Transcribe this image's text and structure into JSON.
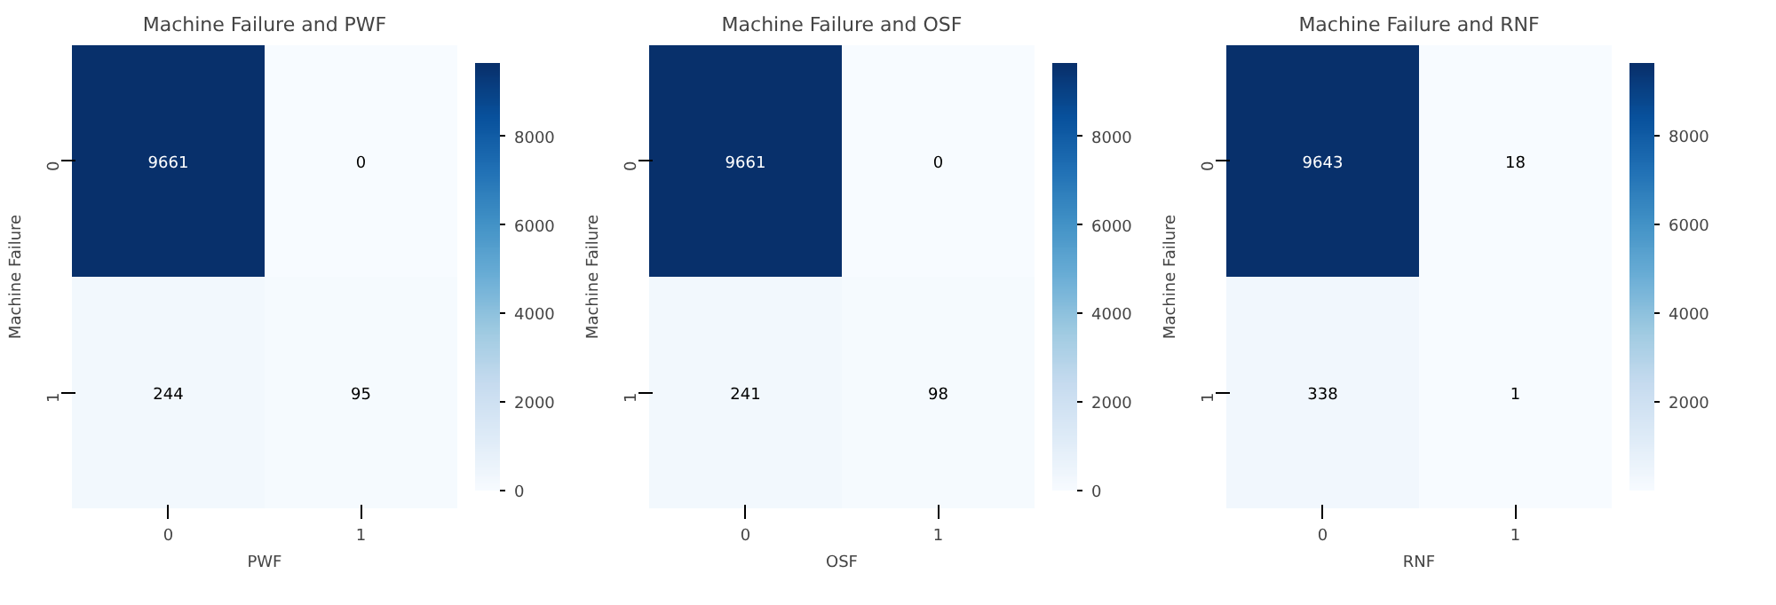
{
  "chart_data": [
    {
      "type": "heatmap",
      "title": "Machine Failure and PWF",
      "xlabel": "PWF",
      "ylabel": "Machine Failure",
      "categories": [
        "0",
        "1"
      ],
      "y_categories": [
        "0",
        "1"
      ],
      "cells": [
        [
          9661,
          0
        ],
        [
          244,
          95
        ]
      ],
      "data_labels": true,
      "clim": [
        0,
        9661
      ],
      "cticks": [
        0,
        2000,
        4000,
        6000,
        8000
      ]
    },
    {
      "type": "heatmap",
      "title": "Machine Failure and OSF",
      "xlabel": "OSF",
      "ylabel": "Machine Failure",
      "categories": [
        "0",
        "1"
      ],
      "y_categories": [
        "0",
        "1"
      ],
      "cells": [
        [
          9661,
          0
        ],
        [
          241,
          98
        ]
      ],
      "data_labels": true,
      "clim": [
        0,
        9661
      ],
      "cticks": [
        0,
        2000,
        4000,
        6000,
        8000
      ]
    },
    {
      "type": "heatmap",
      "title": "Machine Failure and RNF",
      "xlabel": "RNF",
      "ylabel": "Machine Failure",
      "categories": [
        "0",
        "1"
      ],
      "y_categories": [
        "0",
        "1"
      ],
      "cells": [
        [
          9643,
          18
        ],
        [
          338,
          1
        ]
      ],
      "data_labels": true,
      "clim": [
        1,
        9643
      ],
      "cticks": [
        2000,
        4000,
        6000,
        8000
      ]
    }
  ]
}
